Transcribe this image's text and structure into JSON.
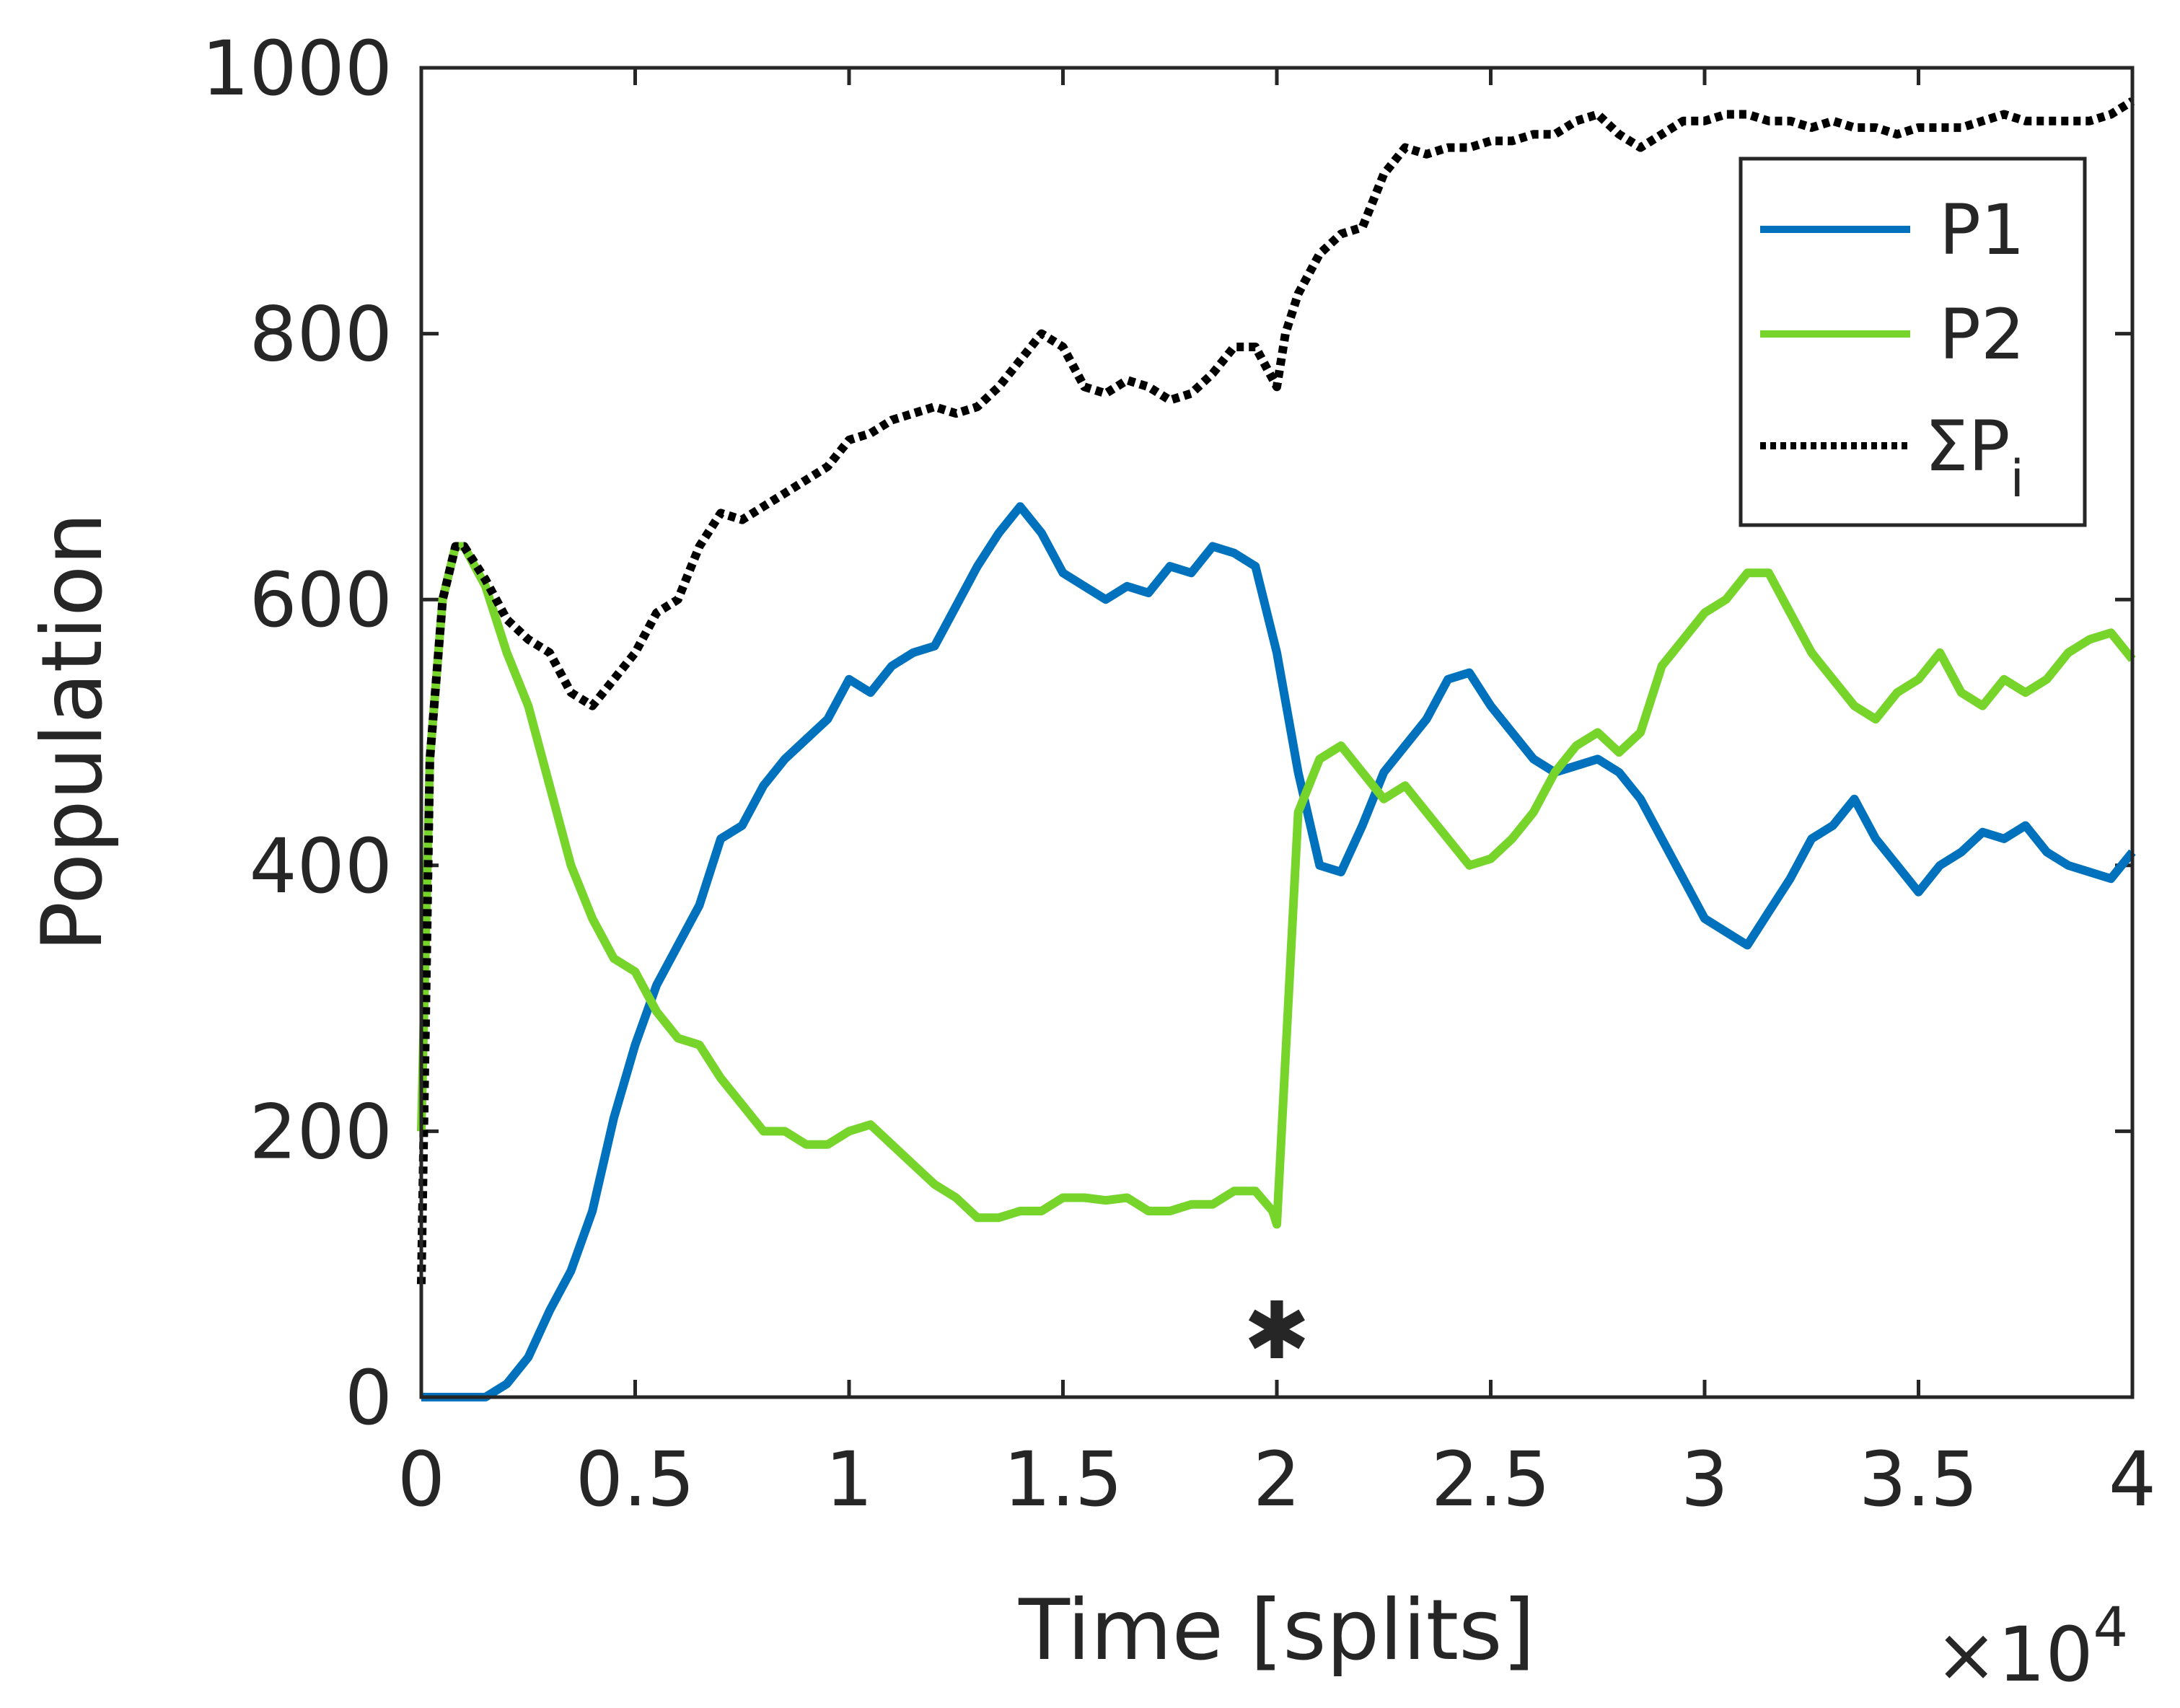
{
  "chart_data": {
    "type": "line",
    "xlabel": "Time [splits]",
    "ylabel": "Population",
    "x_multiplier_label": "×10",
    "x_multiplier_exponent": "4",
    "xlim": [
      0,
      4
    ],
    "ylim": [
      0,
      1000
    ],
    "xticks": [
      "0",
      "0.5",
      "1",
      "1.5",
      "2",
      "2.5",
      "3",
      "3.5",
      "4"
    ],
    "yticks": [
      "0",
      "200",
      "400",
      "600",
      "800",
      "1000"
    ],
    "legend_position": "top-right",
    "series": [
      {
        "name": "P1",
        "color": "#0072BD",
        "style": "solid",
        "x": [
          0,
          0.15,
          0.2,
          0.25,
          0.3,
          0.35,
          0.4,
          0.45,
          0.5,
          0.55,
          0.6,
          0.65,
          0.7,
          0.75,
          0.8,
          0.85,
          0.9,
          0.95,
          1.0,
          1.05,
          1.1,
          1.15,
          1.2,
          1.25,
          1.3,
          1.35,
          1.4,
          1.45,
          1.5,
          1.55,
          1.6,
          1.65,
          1.7,
          1.75,
          1.8,
          1.85,
          1.9,
          1.95,
          2.0,
          2.05,
          2.1,
          2.15,
          2.2,
          2.25,
          2.3,
          2.35,
          2.4,
          2.45,
          2.5,
          2.55,
          2.6,
          2.65,
          2.7,
          2.75,
          2.8,
          2.85,
          2.9,
          2.95,
          3.0,
          3.05,
          3.1,
          3.15,
          3.2,
          3.25,
          3.3,
          3.35,
          3.4,
          3.45,
          3.5,
          3.55,
          3.6,
          3.65,
          3.7,
          3.75,
          3.8,
          3.85,
          3.9,
          3.95,
          4.0
        ],
        "y": [
          0,
          0,
          10,
          30,
          65,
          95,
          140,
          210,
          265,
          310,
          340,
          370,
          420,
          430,
          460,
          480,
          495,
          510,
          540,
          530,
          550,
          560,
          565,
          595,
          625,
          650,
          670,
          650,
          620,
          610,
          600,
          610,
          605,
          625,
          620,
          640,
          635,
          625,
          560,
          470,
          400,
          395,
          430,
          470,
          490,
          510,
          540,
          545,
          520,
          500,
          480,
          470,
          475,
          480,
          470,
          450,
          420,
          390,
          360,
          350,
          340,
          365,
          390,
          420,
          430,
          450,
          420,
          400,
          380,
          400,
          410,
          425,
          420,
          430,
          410,
          400,
          395,
          390,
          410
        ]
      },
      {
        "name": "P2",
        "color": "#77D42A",
        "style": "solid",
        "x": [
          0,
          0.02,
          0.05,
          0.08,
          0.1,
          0.15,
          0.2,
          0.25,
          0.3,
          0.35,
          0.4,
          0.45,
          0.5,
          0.55,
          0.6,
          0.65,
          0.7,
          0.75,
          0.8,
          0.85,
          0.9,
          0.95,
          1.0,
          1.05,
          1.1,
          1.15,
          1.2,
          1.25,
          1.3,
          1.35,
          1.4,
          1.45,
          1.5,
          1.55,
          1.6,
          1.65,
          1.7,
          1.75,
          1.8,
          1.85,
          1.9,
          1.95,
          1.99,
          2.0,
          2.05,
          2.1,
          2.15,
          2.2,
          2.25,
          2.3,
          2.35,
          2.4,
          2.45,
          2.5,
          2.55,
          2.6,
          2.65,
          2.7,
          2.75,
          2.8,
          2.85,
          2.9,
          2.95,
          3.0,
          3.05,
          3.1,
          3.15,
          3.2,
          3.25,
          3.3,
          3.35,
          3.4,
          3.45,
          3.5,
          3.55,
          3.6,
          3.65,
          3.7,
          3.75,
          3.8,
          3.85,
          3.9,
          3.95,
          4.0
        ],
        "y": [
          200,
          480,
          600,
          640,
          640,
          610,
          560,
          520,
          460,
          400,
          360,
          330,
          320,
          290,
          270,
          265,
          240,
          220,
          200,
          200,
          190,
          190,
          200,
          205,
          190,
          175,
          160,
          150,
          135,
          135,
          140,
          140,
          150,
          150,
          148,
          150,
          140,
          140,
          145,
          145,
          155,
          155,
          140,
          130,
          440,
          480,
          490,
          470,
          450,
          460,
          440,
          420,
          400,
          405,
          420,
          440,
          470,
          490,
          500,
          485,
          500,
          550,
          570,
          590,
          600,
          620,
          620,
          590,
          560,
          540,
          520,
          510,
          530,
          540,
          560,
          530,
          520,
          540,
          530,
          540,
          560,
          570,
          575,
          555
        ]
      },
      {
        "name": "ΣP",
        "name_subscript": "i",
        "color": "#000000",
        "style": "dotted",
        "x": [
          0,
          0.02,
          0.05,
          0.08,
          0.1,
          0.15,
          0.2,
          0.25,
          0.3,
          0.35,
          0.4,
          0.45,
          0.5,
          0.55,
          0.6,
          0.65,
          0.7,
          0.75,
          0.8,
          0.85,
          0.9,
          0.95,
          1.0,
          1.05,
          1.1,
          1.15,
          1.2,
          1.25,
          1.3,
          1.35,
          1.4,
          1.45,
          1.5,
          1.55,
          1.6,
          1.65,
          1.7,
          1.75,
          1.8,
          1.85,
          1.9,
          1.95,
          2.0,
          2.02,
          2.05,
          2.1,
          2.15,
          2.2,
          2.25,
          2.3,
          2.35,
          2.4,
          2.45,
          2.5,
          2.55,
          2.6,
          2.65,
          2.7,
          2.75,
          2.8,
          2.85,
          2.9,
          2.95,
          3.0,
          3.05,
          3.1,
          3.15,
          3.2,
          3.25,
          3.3,
          3.35,
          3.4,
          3.45,
          3.5,
          3.55,
          3.6,
          3.65,
          3.7,
          3.75,
          3.8,
          3.85,
          3.9,
          3.95,
          4.0
        ],
        "y": [
          85,
          480,
          600,
          640,
          640,
          615,
          585,
          570,
          560,
          530,
          520,
          540,
          560,
          590,
          600,
          640,
          665,
          660,
          670,
          680,
          690,
          700,
          720,
          725,
          735,
          740,
          745,
          740,
          745,
          760,
          780,
          800,
          790,
          760,
          755,
          765,
          760,
          750,
          755,
          770,
          790,
          790,
          760,
          800,
          830,
          860,
          875,
          880,
          920,
          940,
          935,
          940,
          940,
          945,
          945,
          950,
          950,
          960,
          965,
          950,
          940,
          950,
          960,
          960,
          965,
          965,
          960,
          960,
          955,
          960,
          955,
          955,
          950,
          955,
          955,
          955,
          960,
          965,
          960,
          960,
          960,
          960,
          965,
          975
        ]
      }
    ],
    "annotations": [
      {
        "text": "✱",
        "x": 2.0,
        "y": 50
      }
    ]
  }
}
